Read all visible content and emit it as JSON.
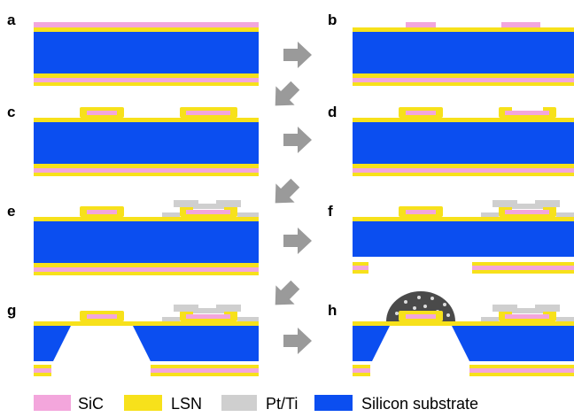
{
  "panels": [
    {
      "label": "a"
    },
    {
      "label": "b"
    },
    {
      "label": "c"
    },
    {
      "label": "d"
    },
    {
      "label": "e"
    },
    {
      "label": "f"
    },
    {
      "label": "g"
    },
    {
      "label": "h"
    }
  ],
  "legend": [
    {
      "label": "SiC"
    },
    {
      "label": "LSN"
    },
    {
      "label": "Pt/Ti"
    },
    {
      "label": "Silicon substrate"
    }
  ]
}
